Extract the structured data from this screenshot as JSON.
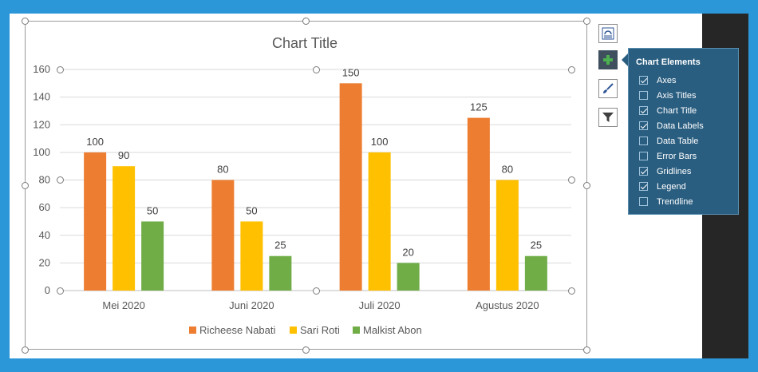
{
  "chart_data": {
    "type": "bar",
    "title": "Chart Title",
    "categories": [
      "Mei 2020",
      "Juni 2020",
      "Juli 2020",
      "Agustus 2020"
    ],
    "series": [
      {
        "name": "Richeese Nabati",
        "values": [
          100,
          80,
          150,
          125
        ],
        "color": "#ed7d31"
      },
      {
        "name": "Sari Roti",
        "values": [
          90,
          50,
          100,
          80
        ],
        "color": "#ffc000"
      },
      {
        "name": "Malkist Abon",
        "values": [
          50,
          25,
          20,
          25
        ],
        "color": "#70ad47"
      }
    ],
    "ylim": [
      0,
      160
    ],
    "yticks": [
      "0",
      "20",
      "40",
      "60",
      "80",
      "100",
      "120",
      "140",
      "160"
    ],
    "grid": true,
    "data_labels": true,
    "legend": "bottom"
  },
  "panel": {
    "title": "Chart Elements",
    "items": [
      {
        "label": "Axes",
        "checked": true
      },
      {
        "label": "Axis Titles",
        "checked": false
      },
      {
        "label": "Chart Title",
        "checked": true
      },
      {
        "label": "Data Labels",
        "checked": true
      },
      {
        "label": "Data Table",
        "checked": false
      },
      {
        "label": "Error Bars",
        "checked": false
      },
      {
        "label": "Gridlines",
        "checked": true
      },
      {
        "label": "Legend",
        "checked": true
      },
      {
        "label": "Trendline",
        "checked": false
      }
    ]
  },
  "tools": {
    "layout_icon": "layout-options-icon",
    "elements_icon": "plus-icon",
    "styles_icon": "brush-icon",
    "filter_icon": "filter-icon"
  },
  "colors": {
    "background": "#2b97d9",
    "panel": "#2a5e80"
  }
}
